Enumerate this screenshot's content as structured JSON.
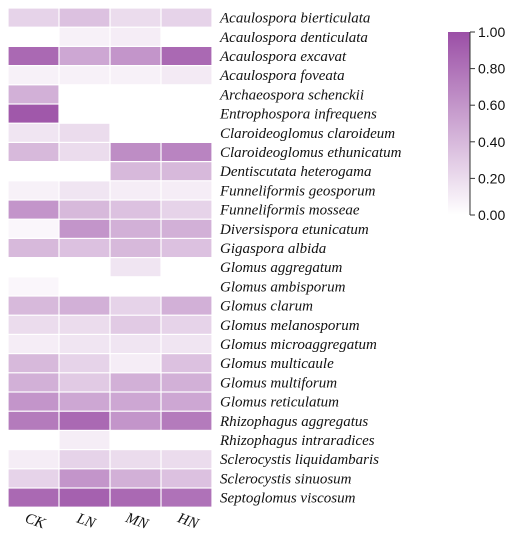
{
  "chart_data": {
    "type": "heatmap",
    "title": "",
    "xlabel": "",
    "ylabel": "",
    "columns": [
      "CK",
      "LN",
      "MN",
      "HN"
    ],
    "rows": [
      "Acaulospora bierticulata",
      "Acaulospora denticulata",
      "Acaulospora excavat",
      "Acaulospora foveata",
      "Archaeospora schenckii",
      "Entrophospora infrequens",
      "Claroideoglomus claroideum",
      "Claroideoglomus ethunicatum",
      "Dentiscutata heterogama",
      "Funneliformis geosporum",
      "Funneliformis mosseae",
      "Diversispora etunicatum",
      "Gigaspora albida",
      "Glomus aggregatum",
      "Glomus ambisporum",
      "Glomus clarum",
      "Glomus melanosporum",
      "Glomus microaggregatum",
      "Glomus multicaule",
      "Glomus multiforum",
      "Glomus reticulatum",
      "Rhizophagus aggregatus",
      "Rhizophagus intraradices",
      "Sclerocystis liquidambaris",
      "Sclerocystis sinuosum",
      "Septoglomus viscosum"
    ],
    "values": [
      [
        0.25,
        0.35,
        0.2,
        0.25
      ],
      [
        0.0,
        0.08,
        0.1,
        0.0
      ],
      [
        0.85,
        0.5,
        0.6,
        0.85
      ],
      [
        0.08,
        0.08,
        0.08,
        0.12
      ],
      [
        0.45,
        0.0,
        0.0,
        0.0
      ],
      [
        0.95,
        0.0,
        0.0,
        0.0
      ],
      [
        0.15,
        0.2,
        0.0,
        0.0
      ],
      [
        0.4,
        0.2,
        0.65,
        0.7
      ],
      [
        0.0,
        0.0,
        0.4,
        0.4
      ],
      [
        0.08,
        0.15,
        0.1,
        0.1
      ],
      [
        0.6,
        0.4,
        0.35,
        0.25
      ],
      [
        0.05,
        0.6,
        0.45,
        0.45
      ],
      [
        0.4,
        0.35,
        0.4,
        0.35
      ],
      [
        0.0,
        0.0,
        0.15,
        0.0
      ],
      [
        0.05,
        0.0,
        0.0,
        0.0
      ],
      [
        0.4,
        0.45,
        0.25,
        0.45
      ],
      [
        0.2,
        0.2,
        0.3,
        0.25
      ],
      [
        0.1,
        0.15,
        0.15,
        0.15
      ],
      [
        0.4,
        0.25,
        0.1,
        0.35
      ],
      [
        0.45,
        0.3,
        0.45,
        0.45
      ],
      [
        0.6,
        0.5,
        0.5,
        0.5
      ],
      [
        0.75,
        0.85,
        0.6,
        0.75
      ],
      [
        0.0,
        0.1,
        0.0,
        0.0
      ],
      [
        0.1,
        0.25,
        0.2,
        0.2
      ],
      [
        0.25,
        0.6,
        0.45,
        0.35
      ],
      [
        0.85,
        0.9,
        0.85,
        0.8
      ]
    ],
    "colorbar": {
      "min": 0.0,
      "max": 1.0,
      "ticks": [
        "0.00",
        "0.20",
        "0.40",
        "0.60",
        "0.80",
        "1.00"
      ],
      "color_low": "#ffffff",
      "color_high": "#9b4fa6"
    },
    "grid": true,
    "legend_placement": "top-right"
  }
}
